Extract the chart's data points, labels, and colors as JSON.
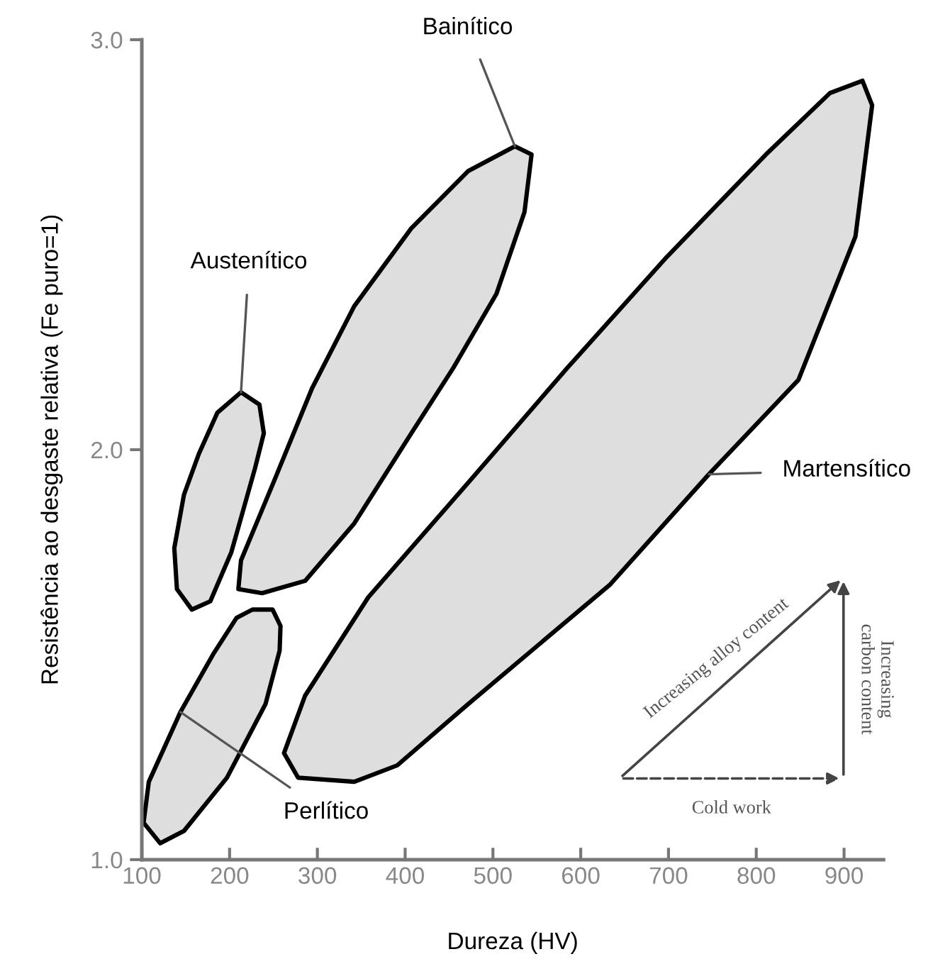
{
  "chart_data": {
    "type": "area",
    "xlabel": "Dureza (HV)",
    "ylabel": "Resistência ao desgaste relativa (Fe puro=1)",
    "xlim": [
      100,
      945
    ],
    "ylim": [
      1.0,
      3.0
    ],
    "xticks": [
      100,
      200,
      300,
      400,
      500,
      600,
      700,
      800,
      900
    ],
    "yticks": [
      {
        "value": 1.0,
        "label": "1.0"
      },
      {
        "value": 2.0,
        "label": "2.0"
      },
      {
        "value": 3.0,
        "label": "3.0"
      }
    ],
    "grid": false,
    "legend": false,
    "line_style": "solid",
    "series": [
      {
        "name": "Austenítico",
        "color": "#dedede",
        "x": [
          213,
          234,
          239,
          229,
          202,
          178,
          157,
          140,
          137,
          148,
          165,
          186,
          213
        ],
        "values": [
          2.14,
          2.11,
          2.04,
          1.955,
          1.75,
          1.63,
          1.61,
          1.66,
          1.76,
          1.89,
          1.99,
          2.09,
          2.14
        ]
      },
      {
        "name": "Bainítico",
        "color": "#dedede",
        "x": [
          525,
          544,
          536,
          504,
          455,
          407,
          342,
          286,
          237,
          210,
          213,
          250,
          294,
          342,
          407,
          472,
          525
        ],
        "values": [
          2.74,
          2.72,
          2.58,
          2.38,
          2.2,
          2.04,
          1.82,
          1.68,
          1.65,
          1.66,
          1.73,
          1.92,
          2.15,
          2.35,
          2.54,
          2.68,
          2.74
        ]
      },
      {
        "name": "Perlítico",
        "color": "#dedede",
        "x": [
          208,
          226,
          249,
          258,
          257,
          241,
          197,
          148,
          121,
          102,
          108,
          144,
          181,
          208
        ],
        "values": [
          1.59,
          1.61,
          1.61,
          1.57,
          1.51,
          1.38,
          1.2,
          1.07,
          1.04,
          1.09,
          1.19,
          1.36,
          1.5,
          1.59
        ]
      },
      {
        "name": "Martensítico",
        "color": "#dedede",
        "x": [
          921,
          932,
          913,
          848,
          746,
          633,
          472,
          391,
          342,
          278,
          262,
          286,
          358,
          472,
          585,
          698,
          811,
          884,
          921
        ],
        "values": [
          2.9,
          2.84,
          2.52,
          2.17,
          1.94,
          1.67,
          1.38,
          1.23,
          1.19,
          1.2,
          1.26,
          1.4,
          1.64,
          1.92,
          2.2,
          2.47,
          2.72,
          2.87,
          2.9
        ]
      }
    ],
    "annotations": [
      "Increasing alloy content",
      "Increasing\ncarbon content",
      "Cold work"
    ]
  }
}
